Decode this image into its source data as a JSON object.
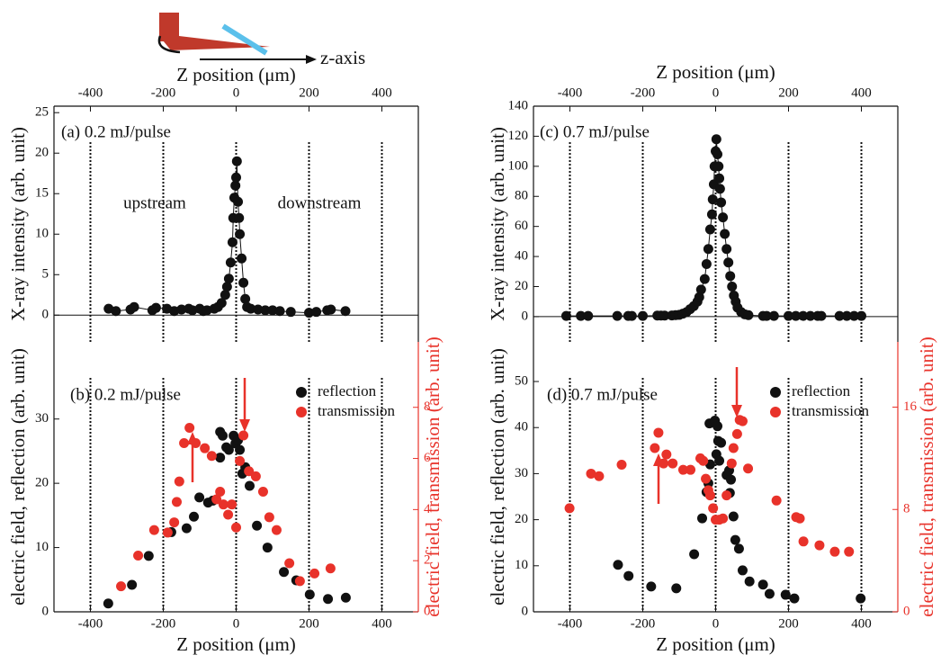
{
  "inset": {
    "label": "z-axis"
  },
  "chart_data": [
    {
      "type": "scatter",
      "label": "(a) 0.2 mJ/pulse",
      "notes": [
        "upstream",
        "downstream"
      ],
      "xlabel": "Z position (μm)",
      "xaxis": "top",
      "ylabel": "X-ray intensity (arb. unit)",
      "xlim": [
        -500,
        500
      ],
      "xticks": [
        -400,
        -200,
        0,
        200,
        400
      ],
      "ylim": [
        -3.3,
        25.8
      ],
      "yticks": [
        0,
        5,
        10,
        15,
        20,
        25
      ],
      "vlines": [
        -400,
        -200,
        0,
        200,
        400
      ],
      "hline": 0,
      "line": true,
      "series": [
        {
          "color": "#111111",
          "x": [
            -350,
            -330,
            -290,
            -280,
            -230,
            -220,
            -190,
            -170,
            -150,
            -130,
            -120,
            -100,
            -90,
            -80,
            -60,
            -50,
            -40,
            -30,
            -25,
            -20,
            -15,
            -10,
            -8,
            -5,
            -2,
            0,
            2,
            5,
            8,
            10,
            15,
            20,
            25,
            30,
            40,
            60,
            80,
            100,
            120,
            150,
            200,
            220,
            250,
            260,
            300
          ],
          "values": [
            0.8,
            0.5,
            0.7,
            1.0,
            0.6,
            0.9,
            0.8,
            0.5,
            0.7,
            0.8,
            0.6,
            0.8,
            0.5,
            0.6,
            0.8,
            1.0,
            1.5,
            2.5,
            3.5,
            4.5,
            6.5,
            9,
            12,
            14.5,
            16,
            17,
            19,
            14,
            12,
            10,
            7,
            4,
            2,
            1,
            0.8,
            0.7,
            0.6,
            0.6,
            0.5,
            0.4,
            0.3,
            0.4,
            0.6,
            0.7,
            0.5
          ]
        }
      ]
    },
    {
      "type": "scatter",
      "label": "(b) 0.2 mJ/pulse",
      "legend": "upper right",
      "xlabel": "Z position (μm)",
      "xaxis": "bottom",
      "ylabel": "electric field, reflection (arb. unit)",
      "y2label": "electric field, transmission (arb. unit)",
      "xlim": [
        -500,
        500
      ],
      "xticks": [
        -400,
        -200,
        0,
        200,
        400
      ],
      "ylim": [
        0,
        42
      ],
      "yticks": [
        0,
        10,
        20,
        30
      ],
      "y2lim": [
        0,
        10.56
      ],
      "y2ticks": [
        0,
        2,
        4,
        6,
        8
      ],
      "vlines": [
        -400,
        -200,
        0,
        200,
        400
      ],
      "series": [
        {
          "name": "reflection",
          "color": "#111111",
          "x": [
            -351,
            -286,
            -240,
            -178,
            -136,
            -116,
            -101,
            -77,
            -64,
            -44,
            -44,
            -37,
            -27,
            -20,
            -7,
            -2,
            5,
            10,
            17,
            25,
            37,
            57,
            86,
            131,
            165,
            202,
            252,
            301
          ],
          "values": [
            1.3,
            4.2,
            8.7,
            12.4,
            13,
            14.8,
            17.8,
            17,
            17.3,
            24,
            28,
            27.4,
            25.6,
            25.2,
            27.4,
            26.2,
            26.7,
            25.2,
            21.5,
            22.5,
            19.6,
            13.4,
            10,
            6.2,
            4.9,
            2.7,
            2,
            2.2
          ]
        },
        {
          "name": "transmission",
          "color": "#e8322a",
          "axis": "y2",
          "x": [
            -316,
            -269,
            -225,
            -188,
            -170,
            -163,
            -156,
            -143,
            -128,
            -111,
            -86,
            -67,
            -54,
            -44,
            -35,
            -22,
            -12,
            0,
            10,
            20,
            35,
            54,
            74,
            91,
            111,
            146,
            175,
            215,
            259
          ],
          "values": [
            1.0,
            2.2,
            3.2,
            3.1,
            3.5,
            4.3,
            5.1,
            6.6,
            7.2,
            6.6,
            6.4,
            6.1,
            4.4,
            4.7,
            4.2,
            3.8,
            4.2,
            3.3,
            5.9,
            6.9,
            5.5,
            5.3,
            4.7,
            3.7,
            3.2,
            1.9,
            1.2,
            1.5,
            1.7
          ]
        }
      ]
    },
    {
      "type": "scatter",
      "label": "(c) 0.7 mJ/pulse",
      "xlabel": "Z position (μm)",
      "xaxis": "top",
      "ylabel": "X-ray intensity (arb. unit)",
      "xlim": [
        -500,
        500
      ],
      "xticks": [
        -400,
        -200,
        0,
        200,
        400
      ],
      "ylim": [
        -16.8,
        140
      ],
      "yticks": [
        0,
        20,
        40,
        60,
        80,
        100,
        120,
        140
      ],
      "vlines": [
        -400,
        -200,
        0,
        200,
        400
      ],
      "hline": 0,
      "line": true,
      "series": [
        {
          "color": "#111111",
          "x": [
            -410,
            -370,
            -350,
            -270,
            -240,
            -230,
            -200,
            -160,
            -150,
            -140,
            -120,
            -110,
            -100,
            -90,
            -80,
            -70,
            -60,
            -50,
            -45,
            -40,
            -30,
            -25,
            -20,
            -15,
            -10,
            -8,
            -5,
            -3,
            0,
            2,
            5,
            8,
            10,
            12,
            15,
            20,
            25,
            30,
            35,
            40,
            45,
            50,
            55,
            60,
            70,
            80,
            90,
            130,
            140,
            160,
            200,
            220,
            240,
            260,
            280,
            290,
            340,
            360,
            380,
            400
          ],
          "values": [
            0.5,
            0.5,
            0.5,
            0.5,
            0.5,
            0.5,
            0.5,
            0.7,
            0.7,
            0.7,
            0.8,
            1,
            1.2,
            2,
            3,
            5,
            7,
            10,
            13,
            18,
            25,
            35,
            45,
            58,
            68,
            78,
            88,
            100,
            110,
            118,
            108,
            100,
            92,
            85,
            76,
            66,
            55,
            45,
            36,
            27,
            20,
            14,
            10,
            6,
            3,
            1.5,
            1,
            0.5,
            0.5,
            0.5,
            0.5,
            0.5,
            0.5,
            0.5,
            0.5,
            0.5,
            0.5,
            0.5,
            0.5,
            0.5
          ]
        }
      ]
    },
    {
      "type": "scatter",
      "label": "(d) 0.7 mJ/pulse",
      "legend": "upper right",
      "xlabel": "Z position (μm)",
      "xaxis": "bottom",
      "ylabel": "electric field, reflection (arb. unit)",
      "y2label": "electric field, transmission (arb. unit)",
      "xlim": [
        -500,
        500
      ],
      "xticks": [
        -400,
        -200,
        0,
        200,
        400
      ],
      "ylim": [
        0,
        58.6
      ],
      "yticks": [
        0,
        10,
        20,
        30,
        40,
        50
      ],
      "y2lim": [
        0,
        21.1
      ],
      "y2ticks": [
        0,
        8,
        16
      ],
      "vlines": [
        -400,
        -200,
        0,
        200,
        400
      ],
      "series": [
        {
          "name": "reflection",
          "color": "#111111",
          "x": [
            -268,
            -239,
            -177,
            -108,
            -59,
            -37,
            -25,
            -20,
            -15,
            -17,
            -2,
            5,
            7,
            15,
            2,
            10,
            30,
            37,
            42,
            39,
            49,
            54,
            64,
            74,
            93,
            130,
            148,
            192,
            216,
            398
          ],
          "values": [
            10.2,
            7.8,
            5.5,
            5.1,
            12.5,
            20.3,
            26,
            27.9,
            32,
            40.9,
            41.5,
            40.3,
            37.1,
            36.7,
            34.2,
            32.8,
            29.7,
            30.7,
            28.7,
            25.8,
            20.7,
            15.6,
            13.7,
            9,
            6.6,
            5.9,
            3.9,
            3.7,
            2.9,
            2.9
          ]
        },
        {
          "name": "transmission",
          "color": "#e8322a",
          "axis": "y2",
          "x": [
            -401,
            -342,
            -320,
            -258,
            -143,
            -167,
            -157,
            -135,
            -118,
            -89,
            -69,
            -42,
            -34,
            -27,
            -20,
            -15,
            -7,
            0,
            10,
            20,
            30,
            44,
            49,
            59,
            66,
            74,
            89,
            167,
            221,
            231,
            241,
            285,
            327,
            366
          ],
          "values": [
            8.1,
            10.8,
            10.6,
            11.5,
            11.6,
            12.8,
            14,
            12.3,
            11.6,
            11.1,
            11.1,
            12,
            11.8,
            10.4,
            9.5,
            9.1,
            8.1,
            7.2,
            7.2,
            7.3,
            9.1,
            11.6,
            12.8,
            13.9,
            15,
            14.9,
            11.2,
            8.7,
            7.4,
            7.3,
            5.5,
            5.2,
            4.7,
            4.7
          ]
        }
      ]
    }
  ]
}
